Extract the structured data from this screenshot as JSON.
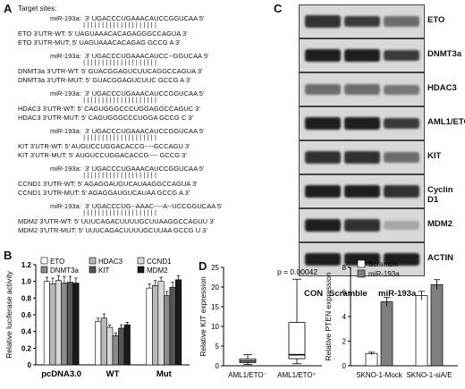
{
  "panel_labels": {
    "a": "A",
    "b": "B",
    "c": "C",
    "d": "D",
    "e": "E"
  },
  "panelA": {
    "title": "Target sites:",
    "groups": [
      {
        "mir": "miR-193a:  3' UGACCCUGAAACAUCCGGUCAA 5'",
        "wt": "ETO 3'UTR-WT: 5' UAGUAAACACAGAGGGCCAGUA 3'",
        "mut": "ETO 3'UTR-MUT: 5' UAGUAAACACAGAG GCCG A 3'"
      },
      {
        "mir": "miR-193a:  3' UGACCCUGAAACAUCC--GGUCAA 5'",
        "wt": "DNMT3a 3'UTR-WT: 5' GUACGGAGUCUUCAGGCCAGUA 3'",
        "mut": "DNMT3a 3'UTR-MUT: 5' GUACGGAGUCUUC GCCG A 3'"
      },
      {
        "mir": "miR-193a:  3' UGACCCUGAAACAUCCGGUCAA 5'",
        "wt": "HDAC3 3'UTR-WT: 5' CAGUGGGCCCUGGAGGCCAGUC 3'",
        "mut": "HDAC3 3'UTR-MUT: 5' CAGUGGGCCCUGGA GCCG C 3'"
      },
      {
        "mir": "miR-193a:  3' UGACCCUGAAACAUCCGGUCAA 5'",
        "wt": "KIT 3'UTR-WT: 5' AUGUCCUGGACACCG----GCCAGU 3'",
        "mut": "KIT 3'UTR-MUT: 5' AUGUCCUGGACACCG---- GCCG 3'"
      },
      {
        "mir": "miR-193a:  3' UGACCCUGAAACAUCCGGUCAA 5'",
        "wt": "CCND1 3'UTR-WT: 5' AGAGGAUGUCAUAAGGCCAGUA 3'",
        "mut": "CCND1 3'UTR-MUT: 5' AGAGGAUGUCAUAA GCCG A 3'"
      },
      {
        "mir": "miR-193a:  3' UGACCCUG--AAAC----A--UCCGGUCAA 5'",
        "wt": "MDM2 3'UTR-WT: 5' UUUCAGACUUUUGCUUAAGGCCAGUU 3'",
        "mut": "MDM2 3'UTR-MUT: 5' UUUCAGACUUUUGCUUAA GCCG U 3'"
      }
    ]
  },
  "panelB": {
    "ylabel": "Relative luciferase activity",
    "legend": [
      "ETO",
      "HDAC3",
      "CCND1",
      "DNMT3a",
      "KIT",
      "MDM2"
    ],
    "colors": [
      "#ffffff",
      "#b8b8b8",
      "#d8d8d8",
      "#8a8a8a",
      "#555555",
      "#1a1a1a"
    ]
  },
  "panelC": {
    "proteins": [
      "ETO",
      "DNMT3a",
      "HDAC3",
      "AML1/ETO",
      "KIT",
      "Cyclin D1",
      "MDM2",
      "ACTIN"
    ],
    "lanes": [
      "CON",
      "Scramble",
      "miR-193a"
    ],
    "intensity": [
      [
        0.85,
        0.8,
        0.55
      ],
      [
        0.95,
        0.95,
        0.8
      ],
      [
        0.55,
        0.55,
        0.5
      ],
      [
        0.95,
        0.95,
        0.8
      ],
      [
        0.85,
        0.85,
        0.55
      ],
      [
        0.95,
        0.95,
        0.85
      ],
      [
        0.95,
        0.85,
        0.25
      ],
      [
        0.95,
        0.95,
        0.95
      ]
    ]
  },
  "panelD": {
    "ylabel": "Relative KIT expression",
    "pvalue": "p = 0.00042",
    "xlabels": [
      "AML1/ETO⁻",
      "AML1/ETO⁺"
    ]
  },
  "panelE": {
    "ylabel": "Relative PTEN expression",
    "legend": [
      "Scramble",
      "miR-193a"
    ],
    "xlabels": [
      "SKNO-1-Mock",
      "SKNO-1-siA/E"
    ]
  },
  "chart_data": [
    {
      "type": "bar",
      "panel": "B",
      "categories": [
        "pcDNA3.0",
        "WT",
        "Mut"
      ],
      "ylim": [
        0,
        1.2
      ],
      "yticks": [
        "0",
        "0.2",
        "0.4",
        "0.6",
        "0.8",
        "1.0",
        "1.2"
      ],
      "ylabel": "Relative luciferase activity",
      "series": [
        {
          "name": "ETO",
          "values": [
            1.0,
            0.52,
            0.92
          ],
          "errors": [
            0.05,
            0.04,
            0.05
          ]
        },
        {
          "name": "DNMT3a",
          "values": [
            0.97,
            0.56,
            0.95
          ],
          "errors": [
            0.07,
            0.05,
            0.06
          ]
        },
        {
          "name": "HDAC3",
          "values": [
            1.01,
            0.45,
            1.0
          ],
          "errors": [
            0.06,
            0.03,
            0.05
          ]
        },
        {
          "name": "KIT",
          "values": [
            0.98,
            0.35,
            0.83
          ],
          "errors": [
            0.08,
            0.03,
            0.05
          ]
        },
        {
          "name": "CCND1",
          "values": [
            0.99,
            0.44,
            0.93
          ],
          "errors": [
            0.07,
            0.04,
            0.06
          ]
        },
        {
          "name": "MDM2",
          "values": [
            0.98,
            0.48,
            1.02
          ],
          "errors": [
            0.06,
            0.03,
            0.05
          ]
        }
      ]
    },
    {
      "type": "box",
      "panel": "D",
      "ylim": [
        0,
        25
      ],
      "yticks": [
        "0",
        "5",
        "10",
        "15",
        "20",
        "25"
      ],
      "ylabel": "Relative KIT expression",
      "groups": [
        {
          "name": "AML1/ETO⁻",
          "min": 0.3,
          "q1": 0.8,
          "median": 1.2,
          "q3": 1.7,
          "max": 2.8
        },
        {
          "name": "AML1/ETO⁺",
          "min": 0.5,
          "q1": 1.8,
          "median": 2.8,
          "q3": 11.0,
          "max": 22.0
        }
      ]
    },
    {
      "type": "bar",
      "panel": "E",
      "categories": [
        "SKNO-1-Mock",
        "SKNO-1-siA/E"
      ],
      "ylim": [
        0,
        8
      ],
      "yticks": [
        "0",
        "2",
        "4",
        "6",
        "8"
      ],
      "ylabel": "Relative PTEN expression",
      "series": [
        {
          "name": "Scramble",
          "values": [
            1.0,
            5.7
          ],
          "errors": [
            0.1,
            0.35
          ]
        },
        {
          "name": "miR-193a",
          "values": [
            5.2,
            6.6
          ],
          "errors": [
            0.35,
            0.4
          ]
        }
      ]
    }
  ]
}
